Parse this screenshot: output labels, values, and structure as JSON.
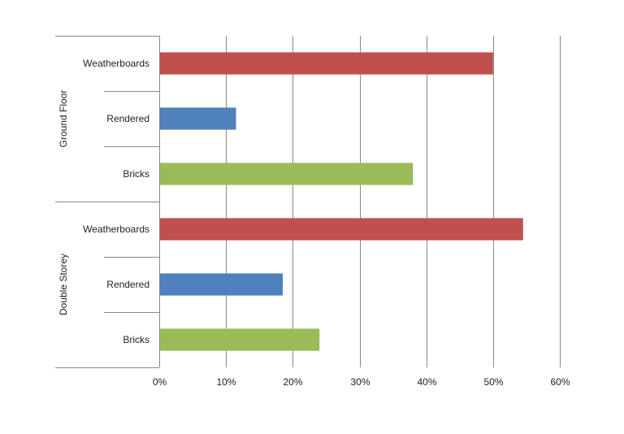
{
  "chart_data": {
    "type": "bar",
    "orientation": "horizontal",
    "groups": [
      {
        "name": "Ground Floor",
        "items": [
          {
            "category": "Weatherboards",
            "value": 50,
            "color": "#c0504d"
          },
          {
            "category": "Rendered",
            "value": 11.5,
            "color": "#4f81bd"
          },
          {
            "category": "Bricks",
            "value": 38,
            "color": "#9bbb59"
          }
        ]
      },
      {
        "name": "Double Storey",
        "items": [
          {
            "category": "Weatherboards",
            "value": 54.5,
            "color": "#c0504d"
          },
          {
            "category": "Rendered",
            "value": 18.5,
            "color": "#4f81bd"
          },
          {
            "category": "Bricks",
            "value": 24,
            "color": "#9bbb59"
          }
        ]
      }
    ],
    "xlim": [
      0,
      60
    ],
    "xticks": [
      0,
      10,
      20,
      30,
      40,
      50,
      60
    ],
    "xtick_labels": [
      "0%",
      "10%",
      "20%",
      "30%",
      "40%",
      "50%",
      "60%"
    ],
    "grid": "vertical",
    "title": "",
    "xlabel": "",
    "ylabel": ""
  }
}
